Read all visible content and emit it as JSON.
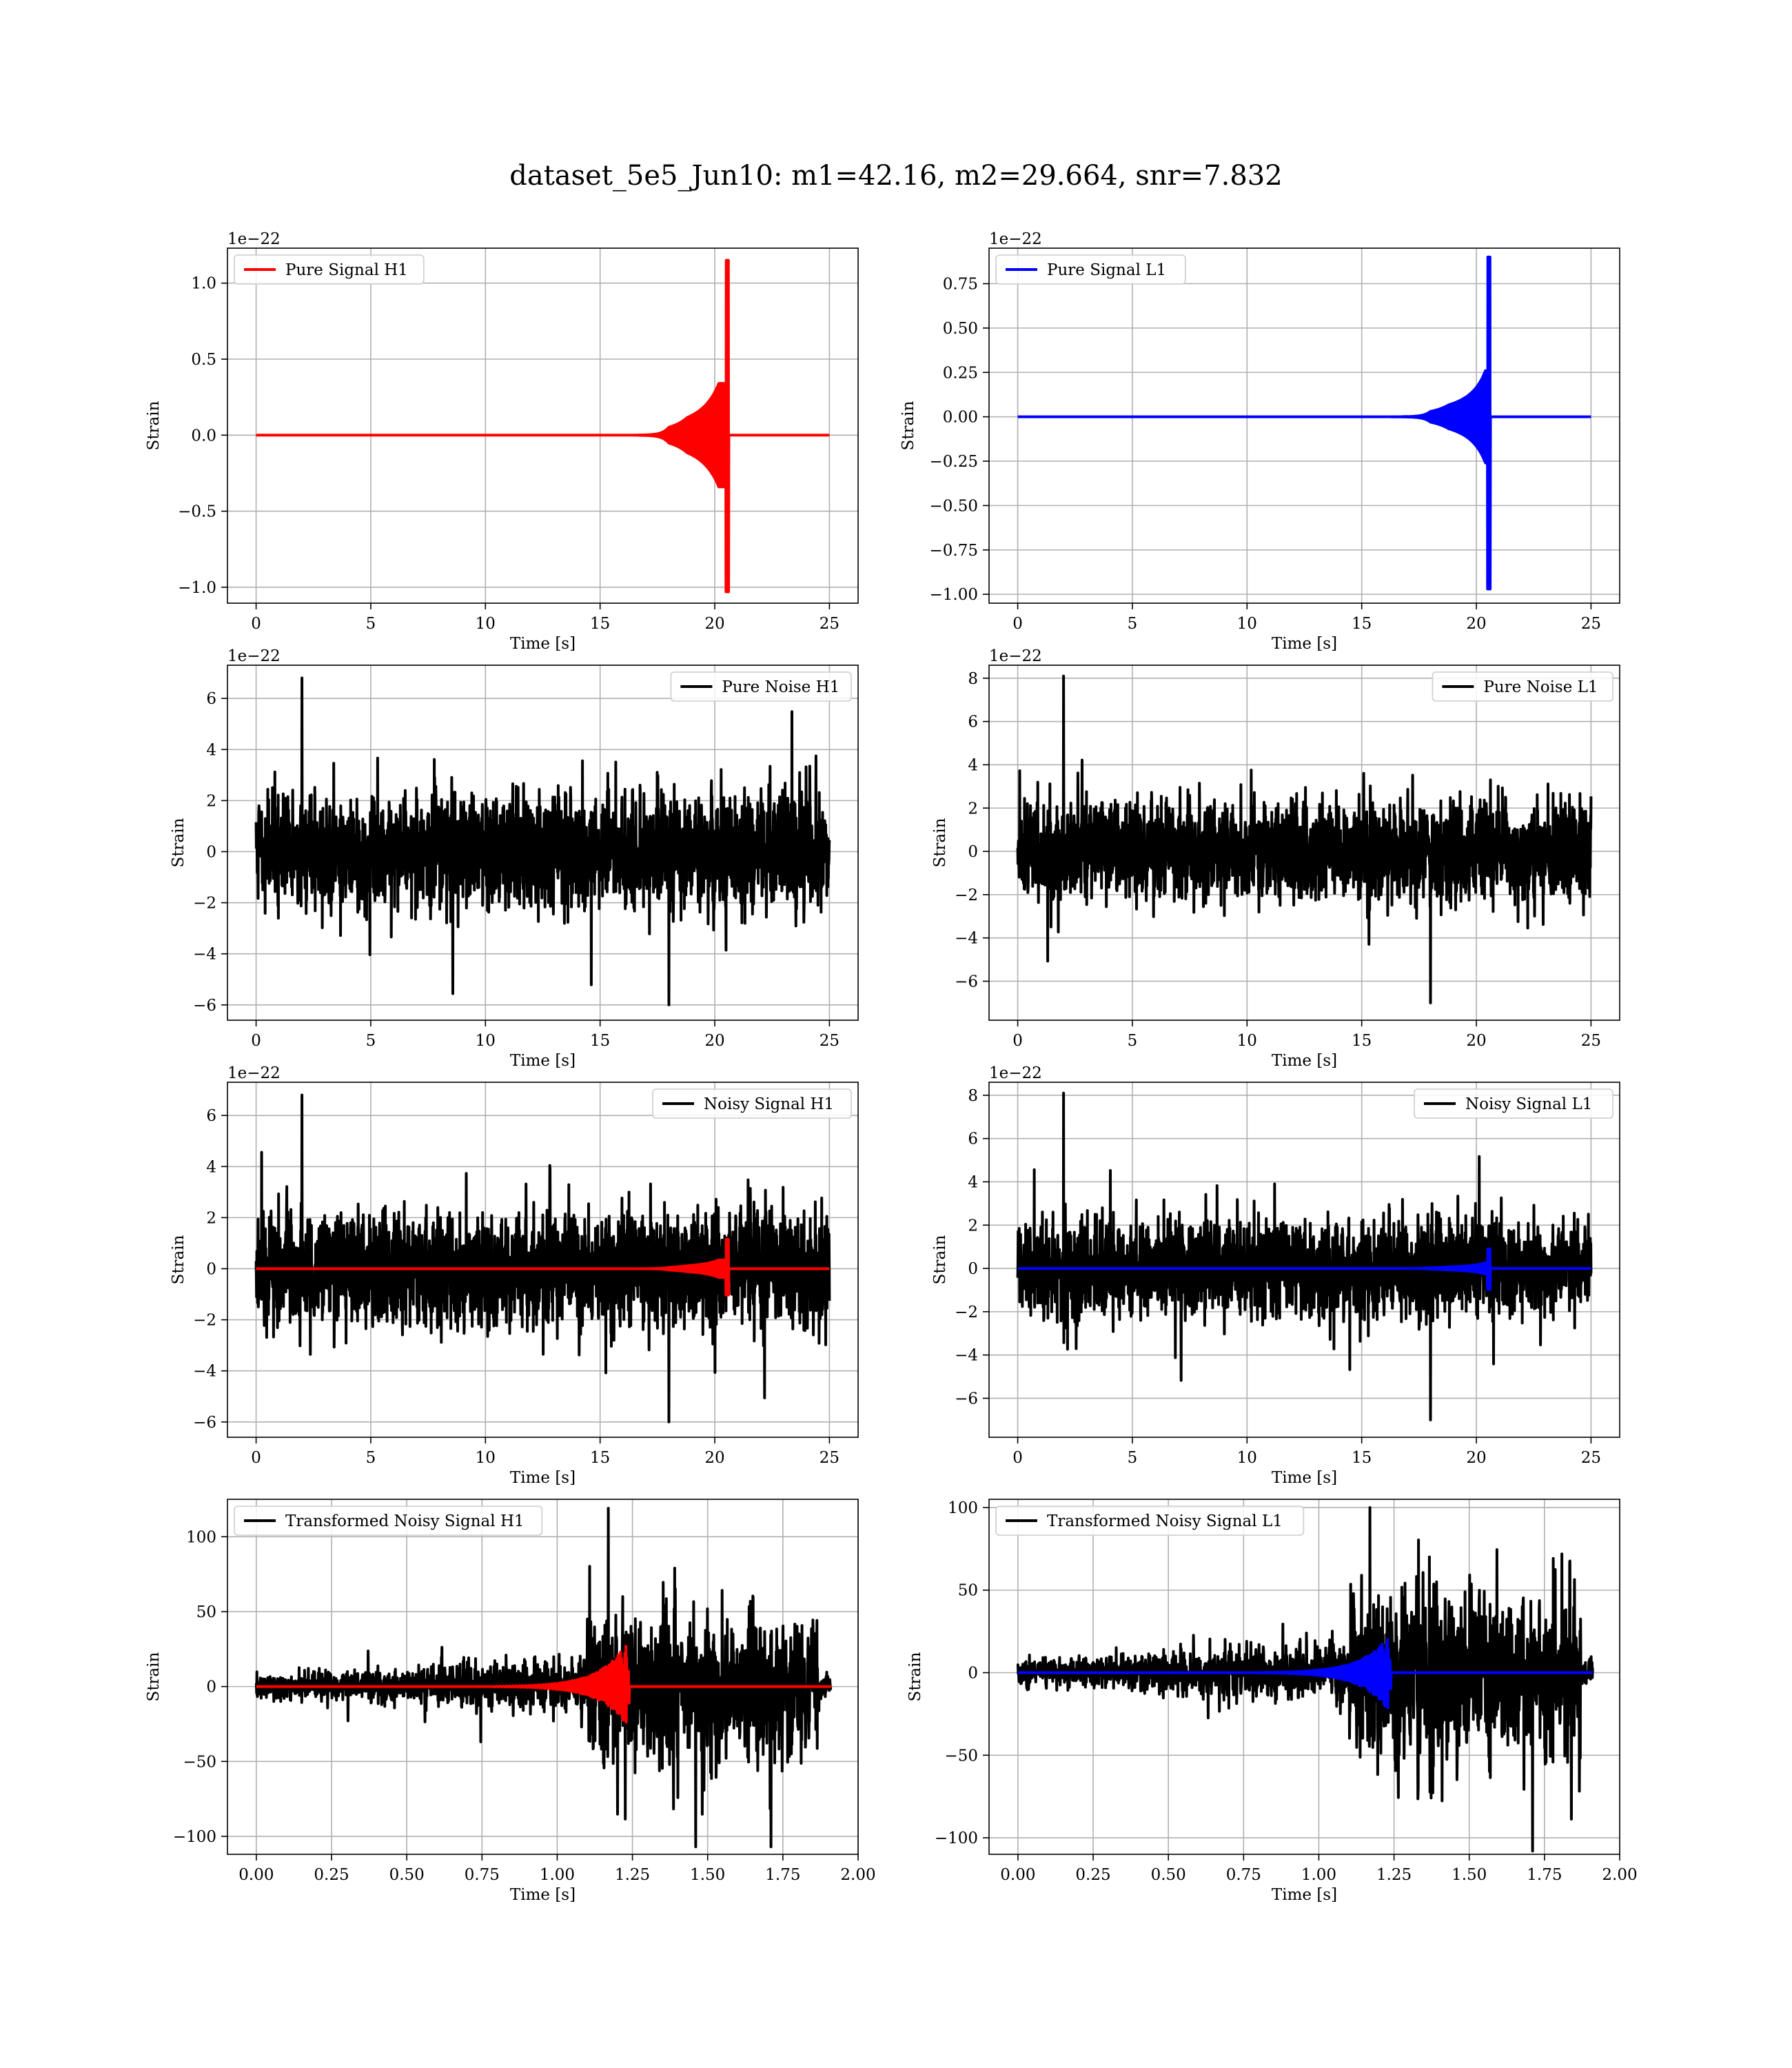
{
  "figure": {
    "title": "dataset_5e5_Jun10: m1=42.16, m2=29.664, snr=7.832",
    "colors": {
      "h1": "#ff0000",
      "l1": "#0000ff",
      "noise": "#000000",
      "grid": "#b0b0b0",
      "legend_border": "#cccccc"
    }
  },
  "chart_data": [
    {
      "type": "line",
      "id": "pure-signal-h1",
      "xlabel": "Time [s]",
      "ylabel": "Strain",
      "offset_text": "1e−22",
      "xlim": [
        -1.25,
        26.25
      ],
      "ylim": [
        -1.105,
        1.23
      ],
      "xticks": [
        0,
        5,
        10,
        15,
        20,
        25
      ],
      "xtick_labels": [
        "0",
        "5",
        "10",
        "15",
        "20",
        "25"
      ],
      "yticks": [
        -1.0,
        -0.5,
        0.0,
        0.5,
        1.0
      ],
      "ytick_labels": [
        "−1.0",
        "−0.5",
        "0.0",
        "0.5",
        "1.0"
      ],
      "legend": {
        "position": "upper-left"
      },
      "series": [
        {
          "name": "Pure Signal H1",
          "color": "#ff0000",
          "kind": "chirp",
          "x_range": [
            0,
            25
          ],
          "merger_time": 20.6,
          "amplitude_early": 0.34,
          "peak_min": -1.03,
          "peak_max": 1.15,
          "units": "1e-22"
        }
      ]
    },
    {
      "type": "line",
      "id": "pure-signal-l1",
      "xlabel": "Time [s]",
      "ylabel": "Strain",
      "offset_text": "1e−22",
      "xlim": [
        -1.25,
        26.25
      ],
      "ylim": [
        -1.05,
        0.95
      ],
      "xticks": [
        0,
        5,
        10,
        15,
        20,
        25
      ],
      "xtick_labels": [
        "0",
        "5",
        "10",
        "15",
        "20",
        "25"
      ],
      "yticks": [
        -1.0,
        -0.75,
        -0.5,
        -0.25,
        0.0,
        0.25,
        0.5,
        0.75
      ],
      "ytick_labels": [
        "−1.00",
        "−0.75",
        "−0.50",
        "−0.25",
        "0.00",
        "0.25",
        "0.50",
        "0.75"
      ],
      "legend": {
        "position": "upper-left"
      },
      "series": [
        {
          "name": "Pure Signal L1",
          "color": "#0000ff",
          "kind": "chirp",
          "x_range": [
            0,
            25
          ],
          "merger_time": 20.6,
          "amplitude_early": 0.26,
          "peak_min": -0.97,
          "peak_max": 0.9,
          "units": "1e-22"
        }
      ]
    },
    {
      "type": "line",
      "id": "pure-noise-h1",
      "xlabel": "Time [s]",
      "ylabel": "Strain",
      "offset_text": "1e−22",
      "xlim": [
        -1.25,
        26.25
      ],
      "ylim": [
        -6.6,
        7.3
      ],
      "xticks": [
        0,
        5,
        10,
        15,
        20,
        25
      ],
      "xtick_labels": [
        "0",
        "5",
        "10",
        "15",
        "20",
        "25"
      ],
      "yticks": [
        -6,
        -4,
        -2,
        0,
        2,
        4,
        6
      ],
      "ytick_labels": [
        "−6",
        "−4",
        "−2",
        "0",
        "2",
        "4",
        "6"
      ],
      "legend": {
        "position": "upper-right"
      },
      "series": [
        {
          "name": "Pure Noise H1",
          "color": "#000000",
          "kind": "noise",
          "x_range": [
            0,
            25
          ],
          "band": [
            -3.6,
            3.4
          ],
          "peak_min": -6.0,
          "peak_max": 6.8,
          "units": "1e-22"
        }
      ]
    },
    {
      "type": "line",
      "id": "pure-noise-l1",
      "xlabel": "Time [s]",
      "ylabel": "Strain",
      "offset_text": "1e−22",
      "xlim": [
        -1.25,
        26.25
      ],
      "ylim": [
        -7.8,
        8.6
      ],
      "xticks": [
        0,
        5,
        10,
        15,
        20,
        25
      ],
      "xtick_labels": [
        "0",
        "5",
        "10",
        "15",
        "20",
        "25"
      ],
      "yticks": [
        -6,
        -4,
        -2,
        0,
        2,
        4,
        6,
        8
      ],
      "ytick_labels": [
        "−6",
        "−4",
        "−2",
        "0",
        "2",
        "4",
        "6",
        "8"
      ],
      "legend": {
        "position": "upper-right"
      },
      "series": [
        {
          "name": "Pure Noise L1",
          "color": "#000000",
          "kind": "noise",
          "x_range": [
            0,
            25
          ],
          "band": [
            -3.6,
            3.4
          ],
          "peak_min": -7.0,
          "peak_max": 8.1,
          "units": "1e-22"
        }
      ]
    },
    {
      "type": "line",
      "id": "noisy-signal-h1",
      "xlabel": "Time [s]",
      "ylabel": "Strain",
      "offset_text": "1e−22",
      "xlim": [
        -1.25,
        26.25
      ],
      "ylim": [
        -6.6,
        7.3
      ],
      "xticks": [
        0,
        5,
        10,
        15,
        20,
        25
      ],
      "xtick_labels": [
        "0",
        "5",
        "10",
        "15",
        "20",
        "25"
      ],
      "yticks": [
        -6,
        -4,
        -2,
        0,
        2,
        4,
        6
      ],
      "ytick_labels": [
        "−6",
        "−4",
        "−2",
        "0",
        "2",
        "4",
        "6"
      ],
      "legend": {
        "position": "upper-right"
      },
      "series": [
        {
          "name": "Noisy Signal H1",
          "color": "#000000",
          "kind": "noise",
          "x_range": [
            0,
            25
          ],
          "band": [
            -3.6,
            3.4
          ],
          "peak_min": -6.0,
          "peak_max": 6.8,
          "units": "1e-22"
        },
        {
          "color": "#ff0000",
          "kind": "chirp",
          "x_range": [
            0,
            25
          ],
          "merger_time": 20.6,
          "amplitude_early": 0.34,
          "peak_min": -1.03,
          "peak_max": 1.15,
          "units": "1e-22"
        }
      ]
    },
    {
      "type": "line",
      "id": "noisy-signal-l1",
      "xlabel": "Time [s]",
      "ylabel": "Strain",
      "offset_text": "1e−22",
      "xlim": [
        -1.25,
        26.25
      ],
      "ylim": [
        -7.8,
        8.6
      ],
      "xticks": [
        0,
        5,
        10,
        15,
        20,
        25
      ],
      "xtick_labels": [
        "0",
        "5",
        "10",
        "15",
        "20",
        "25"
      ],
      "yticks": [
        -6,
        -4,
        -2,
        0,
        2,
        4,
        6,
        8
      ],
      "ytick_labels": [
        "−6",
        "−4",
        "−2",
        "0",
        "2",
        "4",
        "6",
        "8"
      ],
      "legend": {
        "position": "upper-right"
      },
      "series": [
        {
          "name": "Noisy Signal L1",
          "color": "#000000",
          "kind": "noise",
          "x_range": [
            0,
            25
          ],
          "band": [
            -3.6,
            3.4
          ],
          "peak_min": -7.0,
          "peak_max": 8.1,
          "units": "1e-22"
        },
        {
          "color": "#0000ff",
          "kind": "chirp",
          "x_range": [
            0,
            25
          ],
          "merger_time": 20.6,
          "amplitude_early": 0.26,
          "peak_min": -0.97,
          "peak_max": 0.9,
          "units": "1e-22"
        }
      ]
    },
    {
      "type": "line",
      "id": "transformed-noisy-signal-h1",
      "xlabel": "Time [s]",
      "ylabel": "Strain",
      "offset_text": "",
      "xlim": [
        -0.096,
        2.0
      ],
      "ylim": [
        -112,
        125
      ],
      "xticks": [
        0,
        0.25,
        0.5,
        0.75,
        1.0,
        1.25,
        1.5,
        1.75,
        2.0
      ],
      "xtick_labels": [
        "0.00",
        "0.25",
        "0.50",
        "0.75",
        "1.00",
        "1.25",
        "1.50",
        "1.75",
        "2.00"
      ],
      "yticks": [
        -100,
        -50,
        0,
        50,
        100
      ],
      "ytick_labels": [
        "−100",
        "−50",
        "0",
        "50",
        "100"
      ],
      "legend": {
        "position": "upper-left"
      },
      "series": [
        {
          "name": "Transformed Noisy Signal H1",
          "color": "#000000",
          "kind": "transformed-noise",
          "x_range": [
            0,
            1.91
          ],
          "x_end_noise": 1.87,
          "quiet_level": 8,
          "mid_level": 14,
          "loud_start": 1.1,
          "loud_level": 45,
          "peak_min": -107,
          "peak_max": 119
        },
        {
          "color": "#ff0000",
          "kind": "transformed-chirp",
          "x_range": [
            0,
            1.91
          ],
          "merger_time": 1.24,
          "peak_min": -28,
          "peak_max": 32
        }
      ]
    },
    {
      "type": "line",
      "id": "transformed-noisy-signal-l1",
      "xlabel": "Time [s]",
      "ylabel": "Strain",
      "offset_text": "",
      "xlim": [
        -0.096,
        2.0
      ],
      "ylim": [
        -110,
        105
      ],
      "xticks": [
        0,
        0.25,
        0.5,
        0.75,
        1.0,
        1.25,
        1.5,
        1.75,
        2.0
      ],
      "xtick_labels": [
        "0.00",
        "0.25",
        "0.50",
        "0.75",
        "1.00",
        "1.25",
        "1.50",
        "1.75",
        "2.00"
      ],
      "yticks": [
        -100,
        -50,
        0,
        50,
        100
      ],
      "ytick_labels": [
        "−100",
        "−50",
        "0",
        "50",
        "100"
      ],
      "legend": {
        "position": "upper-left"
      },
      "series": [
        {
          "name": "Transformed Noisy Signal L1",
          "color": "#000000",
          "kind": "transformed-noise",
          "x_range": [
            0,
            1.91
          ],
          "x_end_noise": 1.87,
          "quiet_level": 8,
          "mid_level": 14,
          "loud_start": 1.1,
          "loud_level": 45,
          "peak_min": -108,
          "peak_max": 100
        },
        {
          "color": "#0000ff",
          "kind": "transformed-chirp",
          "x_range": [
            0,
            1.91
          ],
          "merger_time": 1.24,
          "peak_min": -25,
          "peak_max": 24
        }
      ]
    }
  ]
}
